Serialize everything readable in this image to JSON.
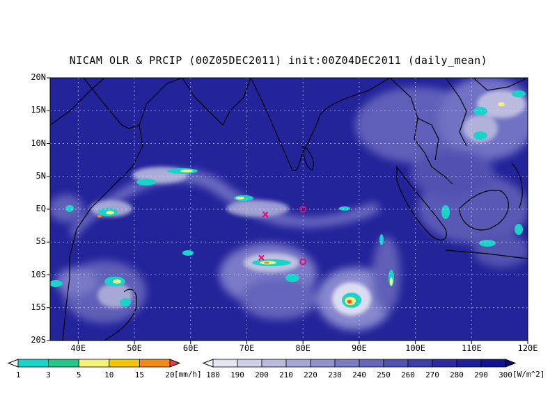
{
  "title": "NICAM OLR & PRCIP (00Z05DEC2011) init:00Z04DEC2011 (daily_mean)",
  "lat_labels": [
    "20N",
    "15N",
    "10N",
    "5N",
    "EQ",
    "5S",
    "10S",
    "15S",
    "20S"
  ],
  "lon_labels": [
    "40E",
    "50E",
    "60E",
    "70E",
    "80E",
    "90E",
    "100E",
    "110E",
    "120E"
  ],
  "precip_colorbar": {
    "levels": [
      "1",
      "3",
      "5",
      "10",
      "15",
      "20"
    ],
    "unit": "[mm/h]",
    "colors": [
      "#ffffff",
      "#19d3c8",
      "#25c48a",
      "#f4f27a",
      "#f2c609",
      "#f28a1a",
      "#e8404a"
    ]
  },
  "olr_colorbar": {
    "levels": [
      "180",
      "190",
      "200",
      "210",
      "220",
      "230",
      "240",
      "250",
      "260",
      "270",
      "280",
      "290",
      "300"
    ],
    "unit": "[W/m^2]",
    "colors": [
      "#ffffff",
      "#e4e4f2",
      "#cfcfe8",
      "#babadf",
      "#a5a5d6",
      "#9090cd",
      "#7b7bc4",
      "#6666bb",
      "#5252b2",
      "#3e3ea9",
      "#2c2ca0",
      "#1f1f97",
      "#14148e",
      "#0b0b80"
    ]
  },
  "markers": [
    {
      "type": "x",
      "color": "#e0106c",
      "lat": -0.8,
      "lon": 73.3
    },
    {
      "type": "x",
      "color": "#e0106c",
      "lat": -7.4,
      "lon": 72.6
    },
    {
      "type": "circle",
      "color": "#e0106c",
      "lat": 0.0,
      "lon": 80.0
    },
    {
      "type": "circle",
      "color": "#e0106c",
      "lat": -8.0,
      "lon": 80.0
    }
  ]
}
